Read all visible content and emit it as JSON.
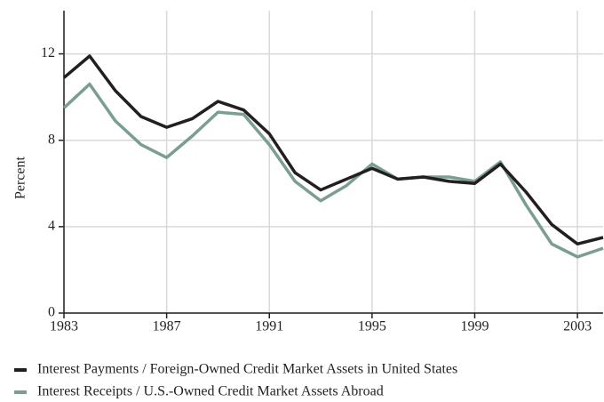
{
  "chart_data": {
    "type": "line",
    "y_label": "Percent",
    "x": [
      1983,
      1984,
      1985,
      1986,
      1987,
      1988,
      1989,
      1990,
      1991,
      1992,
      1993,
      1994,
      1995,
      1996,
      1997,
      1998,
      1999,
      2000,
      2001,
      2002,
      2003,
      2004
    ],
    "series": [
      {
        "name": "Interest Payments / Foreign-Owned Credit Market Assets in United States",
        "color": "#231f20",
        "values": [
          10.9,
          11.9,
          10.3,
          9.1,
          8.6,
          9.0,
          9.8,
          9.4,
          8.3,
          6.5,
          5.7,
          6.2,
          6.7,
          6.2,
          6.3,
          6.1,
          6.0,
          6.9,
          5.6,
          4.1,
          3.2,
          3.5
        ]
      },
      {
        "name": "Interest Receipts / U.S.-Owned Credit Market Assets Abroad",
        "color": "#7a9e8f",
        "values": [
          9.5,
          10.6,
          8.9,
          7.8,
          7.2,
          8.2,
          9.3,
          9.2,
          7.8,
          6.1,
          5.2,
          5.9,
          6.9,
          6.2,
          6.3,
          6.3,
          6.1,
          7.0,
          5.0,
          3.2,
          2.6,
          3.0
        ]
      }
    ],
    "xlim": [
      1983,
      2004
    ],
    "xticks": [
      1983,
      1987,
      1991,
      1995,
      1999,
      2003
    ],
    "ylim": [
      0,
      14
    ],
    "yticks": [
      0,
      4,
      8,
      12
    ],
    "grid": true,
    "legend": "bottom"
  }
}
